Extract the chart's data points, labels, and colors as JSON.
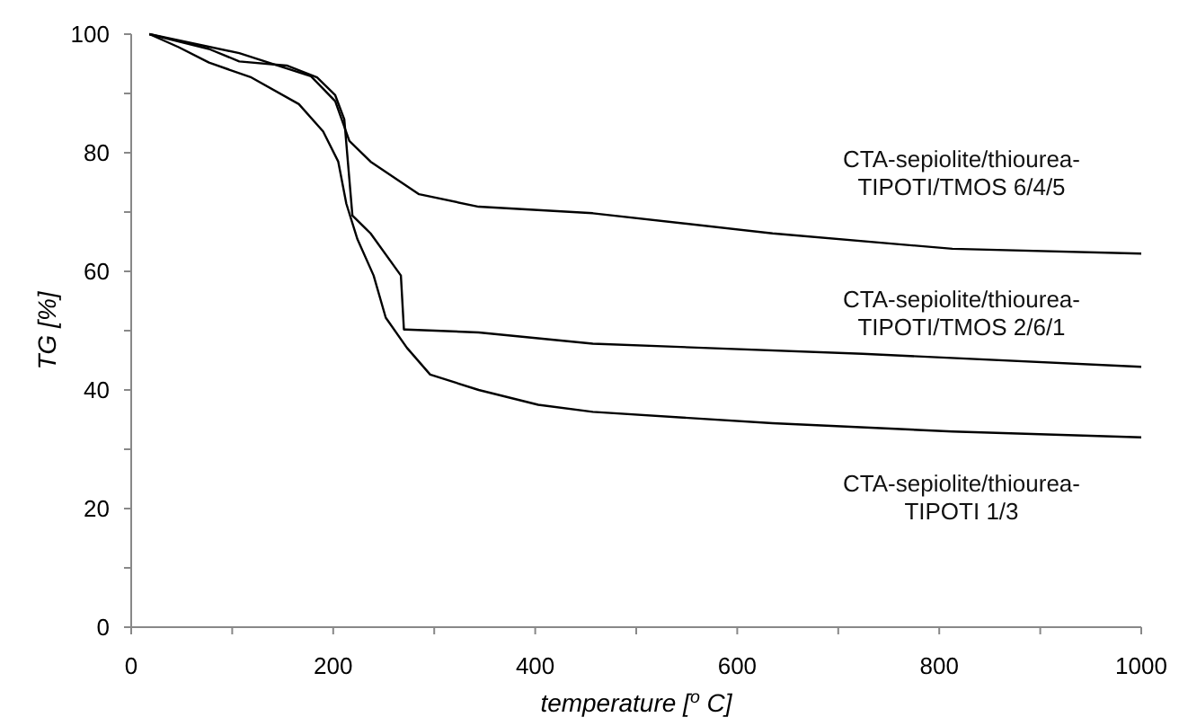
{
  "chart_data": {
    "type": "line",
    "xlabel": "temperature [$^{o}$ C]",
    "ylabel": "TG [%]",
    "xlim": [
      0,
      1000
    ],
    "ylim": [
      0,
      100
    ],
    "xticks": [
      0,
      {
        "value": 100,
        "label": null
      },
      200,
      {
        "value": 300,
        "label": null
      },
      400,
      {
        "value": 500,
        "label": null
      },
      600,
      {
        "value": 700,
        "label": null
      },
      800,
      {
        "value": 900,
        "label": null
      },
      1000
    ],
    "yticks": [
      0,
      {
        "value": 10,
        "label": null
      },
      20,
      {
        "value": 30,
        "label": null
      },
      40,
      {
        "value": 50,
        "label": null
      },
      60,
      {
        "value": 70,
        "label": null
      },
      80,
      {
        "value": 90,
        "label": null
      },
      100
    ],
    "grid": false,
    "marker": "none",
    "line_style": "solid",
    "series": [
      {
        "name": "CTA-sepiolite/thiourea-\nTIPOTI/TMOS 6/4/5",
        "color": "#000000",
        "x": [
          18,
          107,
          178,
          202,
          216,
          237,
          285,
          344,
          457,
          635,
          813,
          1000
        ],
        "values": [
          100,
          96.8,
          92.9,
          88.7,
          82,
          78.5,
          73,
          70.9,
          69.8,
          66.4,
          63.8,
          63
        ]
      },
      {
        "name": "CTA-sepiolite/thiourea-\nTIPOTI/TMOS 2/6/1",
        "color": "#000000",
        "x": [
          18,
          77,
          107,
          154,
          184,
          202,
          211,
          216,
          219,
          237,
          267,
          270,
          272,
          344,
          457,
          724,
          1000
        ],
        "values": [
          100,
          97.5,
          95.4,
          94.7,
          92.7,
          89.7,
          85.6,
          75.5,
          69.4,
          66.4,
          59.3,
          50.2,
          50.2,
          49.7,
          47.8,
          46.1,
          43.9
        ]
      },
      {
        "name": "CTA-sepiolite/thiourea-\nTIPOTI 1/3",
        "color": "#000000",
        "x": [
          18,
          47,
          77,
          119,
          166,
          190,
          205,
          213,
          224,
          240,
          252,
          273,
          296,
          344,
          403,
          457,
          635,
          813,
          1000
        ],
        "values": [
          100,
          97.8,
          95.2,
          92.7,
          88.2,
          83.6,
          78.5,
          71.4,
          65.4,
          59.3,
          52.2,
          47.1,
          42.6,
          40,
          37.5,
          36.3,
          34.4,
          33,
          32
        ]
      }
    ]
  }
}
